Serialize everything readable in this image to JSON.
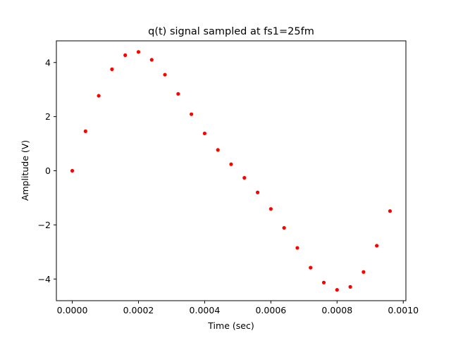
{
  "chart_data": {
    "type": "scatter",
    "title": "q(t) signal sampled at fs1=25fm",
    "xlabel": "Time (sec)",
    "ylabel": "Amplitude (V)",
    "xlim": [
      -4.8e-05,
      0.001008
    ],
    "ylim": [
      -4.8,
      4.8
    ],
    "xticks": [
      0.0,
      0.0002,
      0.0004,
      0.0006,
      0.0008,
      0.001
    ],
    "xtick_labels": [
      "0.0000",
      "0.0002",
      "0.0004",
      "0.0006",
      "0.0008",
      "0.0010"
    ],
    "yticks": [
      -4,
      -2,
      0,
      2,
      4
    ],
    "ytick_labels": [
      "−4",
      "−2",
      "0",
      "2",
      "4"
    ],
    "grid": false,
    "marker_color": "#ff0000",
    "x": [
      0.0,
      4e-05,
      8e-05,
      0.00012,
      0.00016,
      0.0002,
      0.00024,
      0.00028,
      0.00032,
      0.00036,
      0.0004,
      0.00044,
      0.00048,
      0.00052,
      0.00056,
      0.0006,
      0.00064,
      0.00068,
      0.00072,
      0.00076,
      0.0008,
      0.00084,
      0.00088,
      0.00092,
      0.00096
    ],
    "y": [
      0.0,
      1.46,
      2.77,
      3.75,
      4.27,
      4.39,
      4.1,
      3.55,
      2.84,
      2.09,
      1.38,
      0.77,
      0.24,
      -0.26,
      -0.8,
      -1.41,
      -2.11,
      -2.85,
      -3.58,
      -4.13,
      -4.4,
      -4.29,
      -3.74,
      -2.77,
      -1.49
    ]
  }
}
